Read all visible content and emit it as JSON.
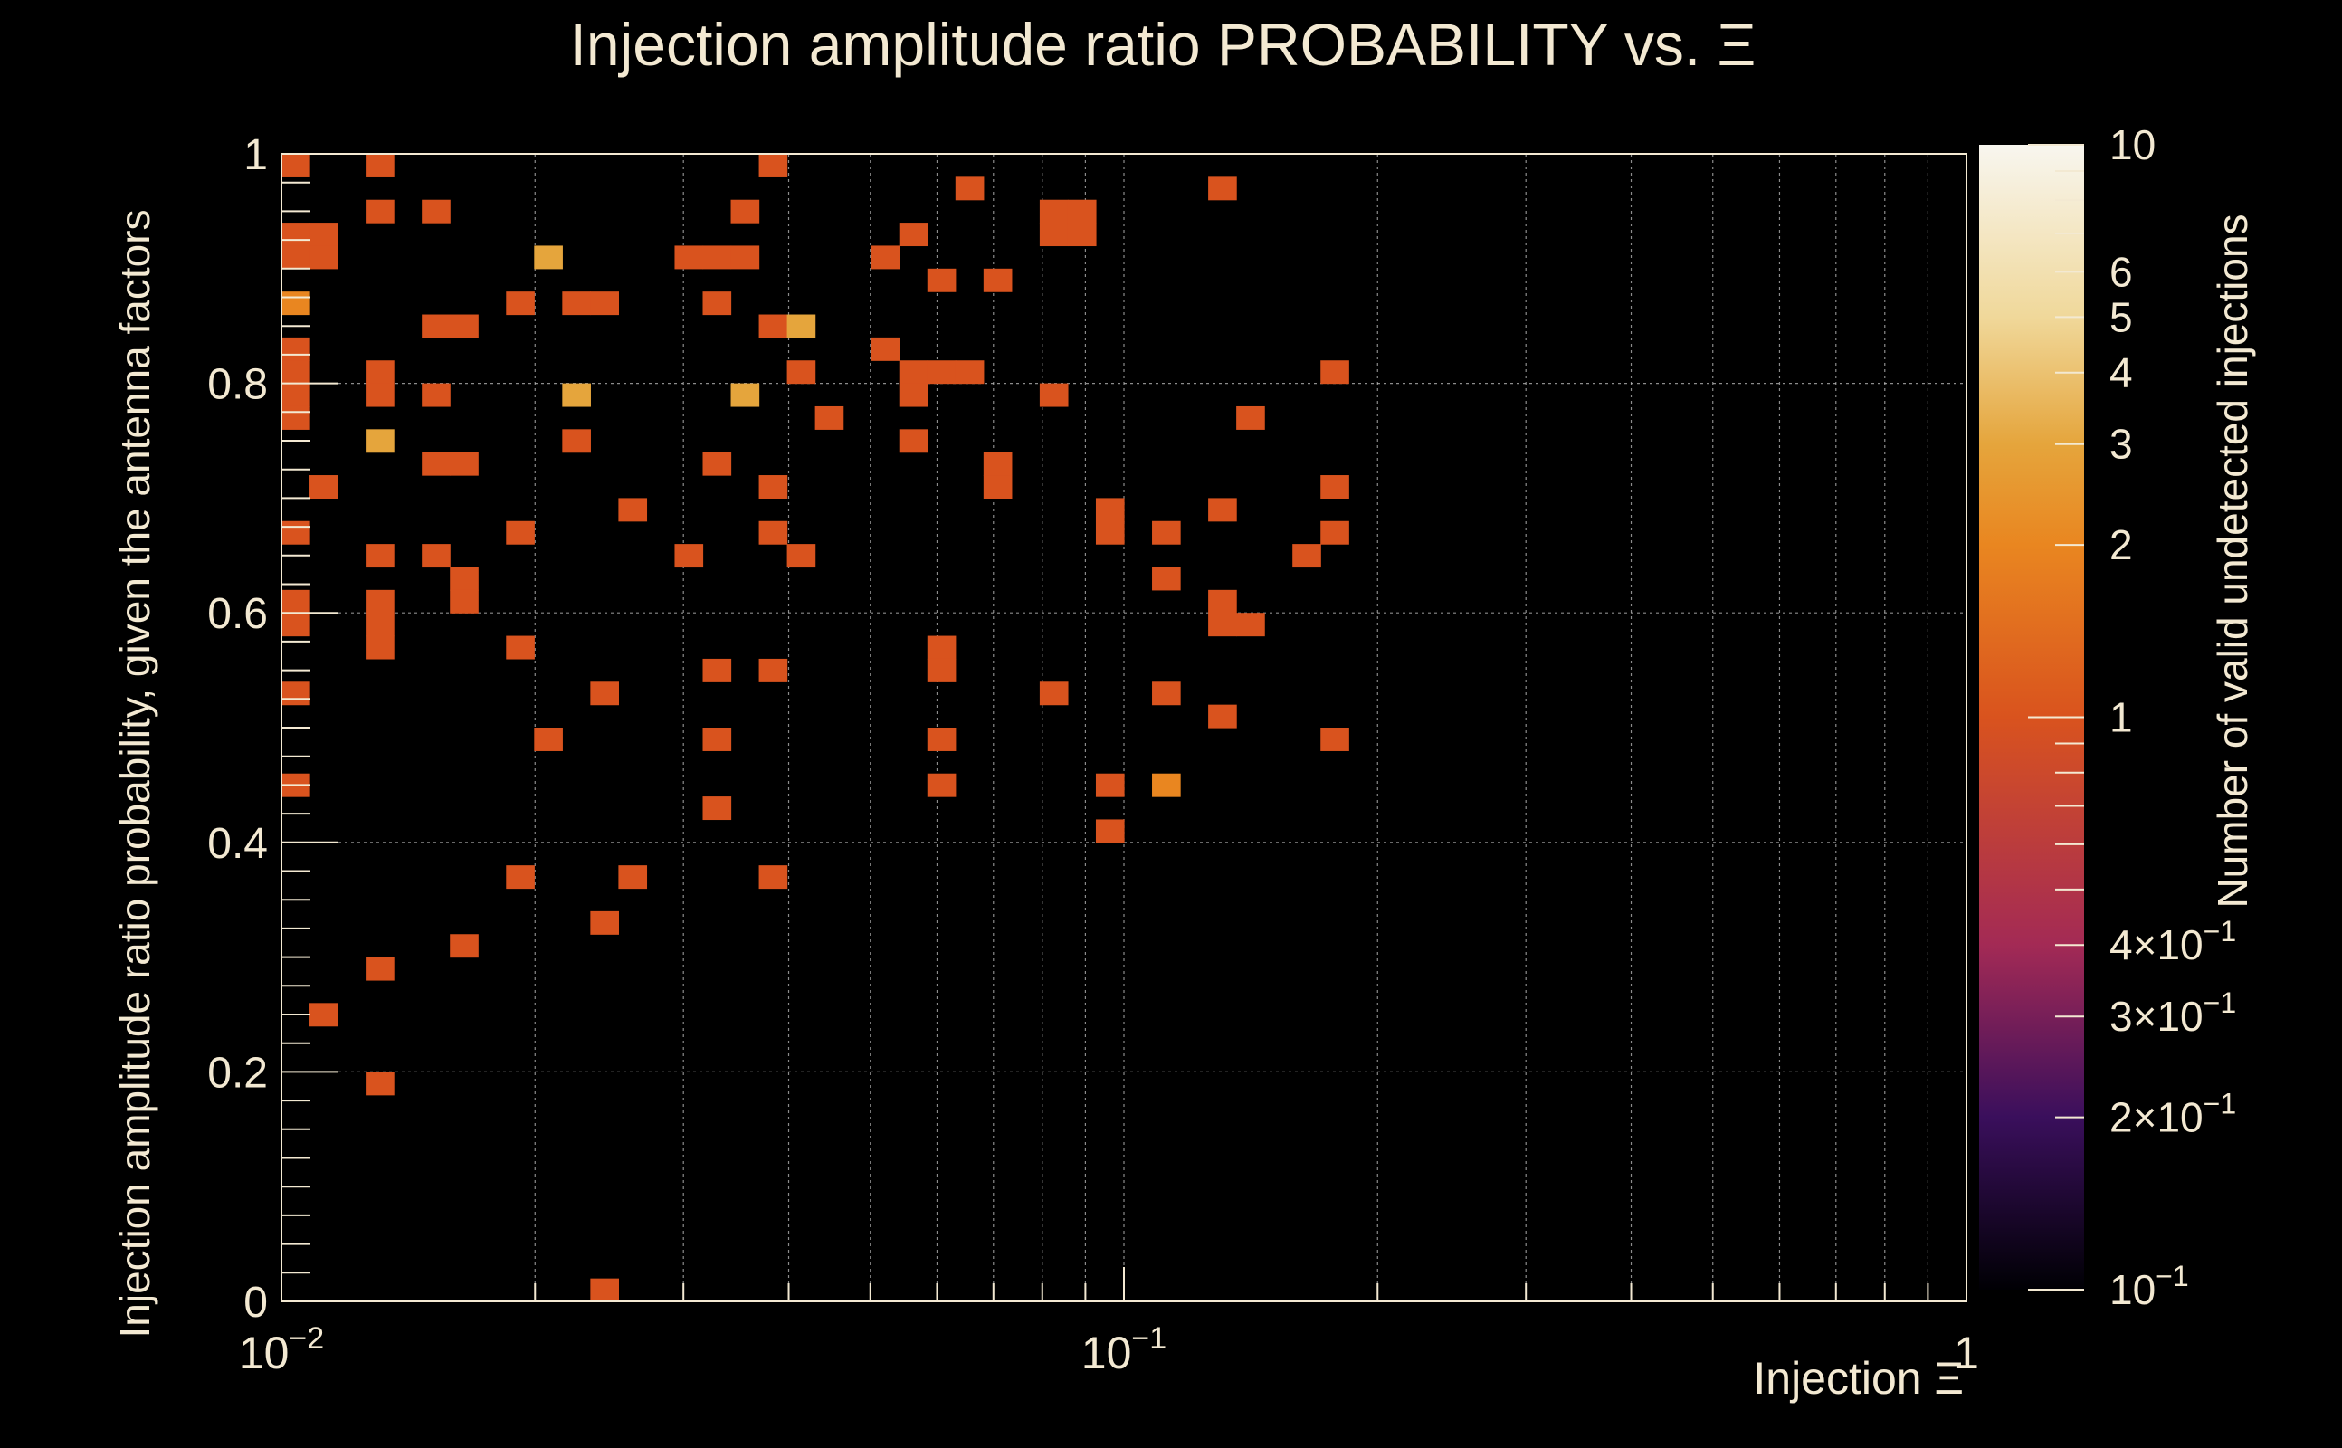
{
  "chart_data": {
    "type": "heatmap",
    "title": "Injection amplitude ratio PROBABILITY vs. Ξ",
    "xlabel": "Injection Ξ",
    "ylabel": "Injection amplitude ratio probability, given the antenna factors",
    "zlabel": "Number of valid undetected injections",
    "x_scale": "log",
    "z_scale": "log",
    "xlim": [
      0.01,
      1
    ],
    "ylim": [
      0,
      1
    ],
    "zlim": [
      0.1,
      10
    ],
    "x_bins": 60,
    "y_bins": 50,
    "grid": true,
    "x_tick_labels": [
      {
        "value": 0.01,
        "base": "10",
        "exp": "−2"
      },
      {
        "value": 0.1,
        "base": "10",
        "exp": "−1"
      },
      {
        "value": 1,
        "base": "1",
        "exp": ""
      }
    ],
    "y_tick_labels": [
      {
        "value": 0,
        "label": "0"
      },
      {
        "value": 0.2,
        "label": "0.2"
      },
      {
        "value": 0.4,
        "label": "0.4"
      },
      {
        "value": 0.6,
        "label": "0.6"
      },
      {
        "value": 0.8,
        "label": "0.8"
      },
      {
        "value": 1,
        "label": "1"
      }
    ],
    "z_tick_labels": [
      {
        "value": 10,
        "base": "10",
        "exp": ""
      },
      {
        "value": 6,
        "base": "6",
        "exp": ""
      },
      {
        "value": 5,
        "base": "5",
        "exp": ""
      },
      {
        "value": 4,
        "base": "4",
        "exp": ""
      },
      {
        "value": 3,
        "base": "3",
        "exp": ""
      },
      {
        "value": 2,
        "base": "2",
        "exp": ""
      },
      {
        "value": 1,
        "base": "1",
        "exp": ""
      },
      {
        "value": 0.4,
        "base": "4×10",
        "exp": "−1"
      },
      {
        "value": 0.3,
        "base": "3×10",
        "exp": "−1"
      },
      {
        "value": 0.2,
        "base": "2×10",
        "exp": "−1"
      },
      {
        "value": 0.1,
        "base": "10",
        "exp": "−1"
      }
    ],
    "colormap_stops": [
      {
        "z": 0.1,
        "color": "#000004"
      },
      {
        "z": 0.2,
        "color": "#3a0f5c"
      },
      {
        "z": 0.4,
        "color": "#a32a55"
      },
      {
        "z": 1,
        "color": "#d9531e"
      },
      {
        "z": 2,
        "color": "#e98620"
      },
      {
        "z": 3,
        "color": "#e5a53c"
      },
      {
        "z": 5,
        "color": "#f0d89a"
      },
      {
        "z": 10,
        "color": "#f8f6ef"
      }
    ],
    "cells": [
      {
        "x": 0.0103,
        "y": 0.99,
        "z": 1
      },
      {
        "x": 0.0126,
        "y": 0.99,
        "z": 1
      },
      {
        "x": 0.0385,
        "y": 0.99,
        "z": 1
      },
      {
        "x": 0.0126,
        "y": 0.95,
        "z": 1
      },
      {
        "x": 0.0147,
        "y": 0.95,
        "z": 1
      },
      {
        "x": 0.0353,
        "y": 0.95,
        "z": 1
      },
      {
        "x": 0.067,
        "y": 0.97,
        "z": 1
      },
      {
        "x": 0.133,
        "y": 0.97,
        "z": 1
      },
      {
        "x": 0.0103,
        "y": 0.93,
        "z": 1
      },
      {
        "x": 0.0112,
        "y": 0.93,
        "z": 1
      },
      {
        "x": 0.0103,
        "y": 0.91,
        "z": 1
      },
      {
        "x": 0.0112,
        "y": 0.91,
        "z": 1
      },
      {
        "x": 0.08,
        "y": 0.95,
        "z": 1
      },
      {
        "x": 0.087,
        "y": 0.95,
        "z": 1
      },
      {
        "x": 0.08,
        "y": 0.93,
        "z": 1
      },
      {
        "x": 0.087,
        "y": 0.93,
        "z": 1
      },
      {
        "x": 0.0205,
        "y": 0.91,
        "z": 3
      },
      {
        "x": 0.0297,
        "y": 0.91,
        "z": 1
      },
      {
        "x": 0.0324,
        "y": 0.91,
        "z": 1
      },
      {
        "x": 0.0353,
        "y": 0.91,
        "z": 1
      },
      {
        "x": 0.0514,
        "y": 0.91,
        "z": 1
      },
      {
        "x": 0.056,
        "y": 0.93,
        "z": 1
      },
      {
        "x": 0.0614,
        "y": 0.89,
        "z": 1
      },
      {
        "x": 0.073,
        "y": 0.89,
        "z": 1
      },
      {
        "x": 0.0103,
        "y": 0.87,
        "z": 2
      },
      {
        "x": 0.0188,
        "y": 0.87,
        "z": 1
      },
      {
        "x": 0.0223,
        "y": 0.87,
        "z": 1
      },
      {
        "x": 0.0243,
        "y": 0.87,
        "z": 1
      },
      {
        "x": 0.0324,
        "y": 0.87,
        "z": 1
      },
      {
        "x": 0.0147,
        "y": 0.85,
        "z": 1
      },
      {
        "x": 0.0161,
        "y": 0.85,
        "z": 1
      },
      {
        "x": 0.0385,
        "y": 0.85,
        "z": 1
      },
      {
        "x": 0.042,
        "y": 0.85,
        "z": 3
      },
      {
        "x": 0.0103,
        "y": 0.83,
        "z": 1
      },
      {
        "x": 0.0514,
        "y": 0.83,
        "z": 1
      },
      {
        "x": 0.0103,
        "y": 0.81,
        "z": 1
      },
      {
        "x": 0.0126,
        "y": 0.81,
        "z": 1
      },
      {
        "x": 0.042,
        "y": 0.81,
        "z": 1
      },
      {
        "x": 0.056,
        "y": 0.81,
        "z": 1
      },
      {
        "x": 0.0614,
        "y": 0.81,
        "z": 1
      },
      {
        "x": 0.067,
        "y": 0.81,
        "z": 1
      },
      {
        "x": 0.178,
        "y": 0.81,
        "z": 1
      },
      {
        "x": 0.0103,
        "y": 0.79,
        "z": 1
      },
      {
        "x": 0.0126,
        "y": 0.79,
        "z": 1
      },
      {
        "x": 0.0147,
        "y": 0.79,
        "z": 1
      },
      {
        "x": 0.0223,
        "y": 0.79,
        "z": 3
      },
      {
        "x": 0.0353,
        "y": 0.79,
        "z": 3
      },
      {
        "x": 0.056,
        "y": 0.79,
        "z": 1
      },
      {
        "x": 0.08,
        "y": 0.79,
        "z": 1
      },
      {
        "x": 0.0103,
        "y": 0.77,
        "z": 1
      },
      {
        "x": 0.046,
        "y": 0.77,
        "z": 1
      },
      {
        "x": 0.145,
        "y": 0.77,
        "z": 1
      },
      {
        "x": 0.0135,
        "y": 0.75,
        "z": 3
      },
      {
        "x": 0.0223,
        "y": 0.75,
        "z": 1
      },
      {
        "x": 0.056,
        "y": 0.75,
        "z": 1
      },
      {
        "x": 0.0147,
        "y": 0.73,
        "z": 1
      },
      {
        "x": 0.0161,
        "y": 0.73,
        "z": 1
      },
      {
        "x": 0.0324,
        "y": 0.73,
        "z": 1
      },
      {
        "x": 0.073,
        "y": 0.73,
        "z": 1
      },
      {
        "x": 0.0112,
        "y": 0.71,
        "z": 1
      },
      {
        "x": 0.0385,
        "y": 0.71,
        "z": 1
      },
      {
        "x": 0.073,
        "y": 0.71,
        "z": 1
      },
      {
        "x": 0.178,
        "y": 0.71,
        "z": 1
      },
      {
        "x": 0.0265,
        "y": 0.69,
        "z": 1
      },
      {
        "x": 0.095,
        "y": 0.69,
        "z": 1
      },
      {
        "x": 0.133,
        "y": 0.69,
        "z": 1
      },
      {
        "x": 0.0103,
        "y": 0.67,
        "z": 1
      },
      {
        "x": 0.0188,
        "y": 0.67,
        "z": 1
      },
      {
        "x": 0.0385,
        "y": 0.67,
        "z": 1
      },
      {
        "x": 0.095,
        "y": 0.67,
        "z": 1
      },
      {
        "x": 0.112,
        "y": 0.67,
        "z": 1
      },
      {
        "x": 0.178,
        "y": 0.67,
        "z": 1
      },
      {
        "x": 0.0126,
        "y": 0.65,
        "z": 1
      },
      {
        "x": 0.0147,
        "y": 0.65,
        "z": 1
      },
      {
        "x": 0.0297,
        "y": 0.65,
        "z": 1
      },
      {
        "x": 0.042,
        "y": 0.65,
        "z": 1
      },
      {
        "x": 0.163,
        "y": 0.65,
        "z": 1
      },
      {
        "x": 0.0161,
        "y": 0.63,
        "z": 1
      },
      {
        "x": 0.112,
        "y": 0.63,
        "z": 1
      },
      {
        "x": 0.0103,
        "y": 0.61,
        "z": 1
      },
      {
        "x": 0.0135,
        "y": 0.61,
        "z": 1
      },
      {
        "x": 0.0161,
        "y": 0.61,
        "z": 1
      },
      {
        "x": 0.133,
        "y": 0.61,
        "z": 1
      },
      {
        "x": 0.0103,
        "y": 0.59,
        "z": 1
      },
      {
        "x": 0.0135,
        "y": 0.59,
        "z": 1
      },
      {
        "x": 0.133,
        "y": 0.59,
        "z": 1
      },
      {
        "x": 0.145,
        "y": 0.59,
        "z": 1
      },
      {
        "x": 0.0135,
        "y": 0.57,
        "z": 1
      },
      {
        "x": 0.0188,
        "y": 0.57,
        "z": 1
      },
      {
        "x": 0.0614,
        "y": 0.57,
        "z": 1
      },
      {
        "x": 0.0324,
        "y": 0.55,
        "z": 1
      },
      {
        "x": 0.0385,
        "y": 0.55,
        "z": 1
      },
      {
        "x": 0.0614,
        "y": 0.55,
        "z": 1
      },
      {
        "x": 0.0103,
        "y": 0.53,
        "z": 1
      },
      {
        "x": 0.0243,
        "y": 0.53,
        "z": 1
      },
      {
        "x": 0.08,
        "y": 0.53,
        "z": 1
      },
      {
        "x": 0.112,
        "y": 0.53,
        "z": 1
      },
      {
        "x": 0.133,
        "y": 0.51,
        "z": 1
      },
      {
        "x": 0.0205,
        "y": 0.49,
        "z": 1
      },
      {
        "x": 0.0324,
        "y": 0.49,
        "z": 1
      },
      {
        "x": 0.0614,
        "y": 0.49,
        "z": 1
      },
      {
        "x": 0.178,
        "y": 0.49,
        "z": 1
      },
      {
        "x": 0.0103,
        "y": 0.45,
        "z": 1
      },
      {
        "x": 0.0614,
        "y": 0.45,
        "z": 1
      },
      {
        "x": 0.095,
        "y": 0.45,
        "z": 1
      },
      {
        "x": 0.112,
        "y": 0.45,
        "z": 2
      },
      {
        "x": 0.0324,
        "y": 0.43,
        "z": 1
      },
      {
        "x": 0.095,
        "y": 0.41,
        "z": 1
      },
      {
        "x": 0.0188,
        "y": 0.37,
        "z": 1
      },
      {
        "x": 0.0265,
        "y": 0.37,
        "z": 1
      },
      {
        "x": 0.0385,
        "y": 0.37,
        "z": 1
      },
      {
        "x": 0.0243,
        "y": 0.33,
        "z": 1
      },
      {
        "x": 0.0161,
        "y": 0.31,
        "z": 1
      },
      {
        "x": 0.0126,
        "y": 0.29,
        "z": 1
      },
      {
        "x": 0.0112,
        "y": 0.25,
        "z": 1
      },
      {
        "x": 0.0135,
        "y": 0.19,
        "z": 1
      },
      {
        "x": 0.0243,
        "y": 0.01,
        "z": 1
      }
    ]
  }
}
